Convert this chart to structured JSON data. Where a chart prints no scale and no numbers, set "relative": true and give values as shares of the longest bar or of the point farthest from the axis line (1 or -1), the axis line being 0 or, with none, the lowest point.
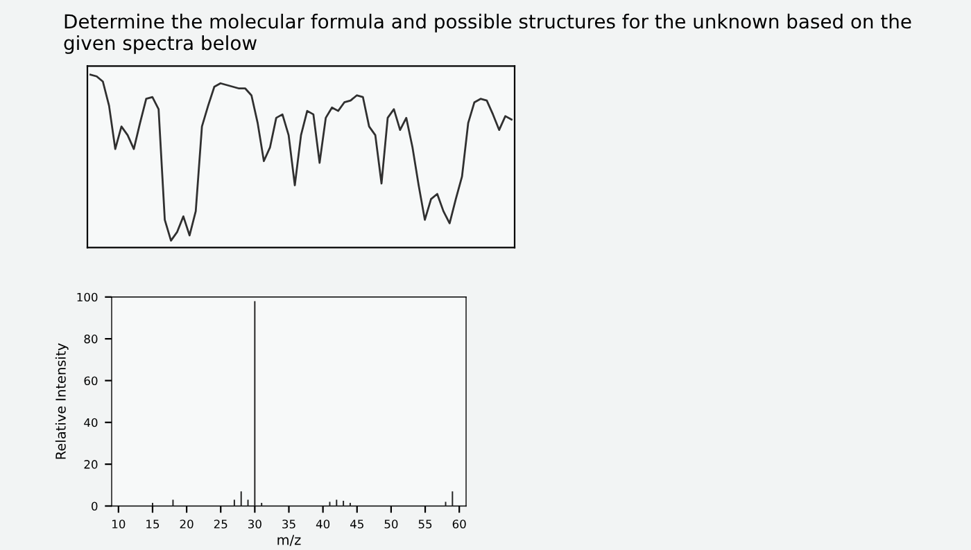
{
  "chart_data": [
    {
      "type": "line",
      "title": "Determine the molecular formula and possible structures for the unknown based on the given spectra below",
      "relative": true,
      "color": "#303030",
      "categories": [
        null,
        null,
        null,
        null,
        null,
        null,
        null,
        null,
        null,
        null,
        null,
        null,
        null,
        null,
        null,
        null,
        null,
        null,
        null,
        null,
        null,
        null,
        null,
        null,
        null,
        null,
        null,
        null,
        null,
        null,
        null,
        null,
        null,
        null,
        null,
        null,
        null,
        null,
        null,
        null,
        null,
        null,
        null,
        null,
        null,
        null,
        null,
        null,
        null,
        null,
        null,
        null,
        null,
        null,
        null,
        null,
        null,
        null,
        null,
        null,
        null,
        null,
        null,
        null,
        null,
        null,
        null,
        null,
        null
      ],
      "values": [
        1.0,
        0.99,
        0.96,
        0.82,
        0.57,
        0.7,
        0.65,
        0.57,
        0.72,
        0.86,
        0.87,
        0.8,
        0.16,
        0.04,
        0.09,
        0.18,
        0.07,
        0.21,
        0.7,
        0.82,
        0.93,
        0.95,
        0.94,
        0.93,
        0.92,
        0.92,
        0.88,
        0.72,
        0.5,
        0.58,
        0.75,
        0.77,
        0.65,
        0.36,
        0.65,
        0.79,
        0.77,
        0.49,
        0.75,
        0.81,
        0.79,
        0.84,
        0.85,
        0.88,
        0.87,
        0.7,
        0.65,
        0.37,
        0.75,
        0.8,
        0.68,
        0.75,
        0.58,
        0.36,
        0.16,
        0.28,
        0.31,
        0.21,
        0.14,
        0.28,
        0.41,
        0.72,
        0.84,
        0.86,
        0.85,
        0.77,
        0.68,
        0.76,
        0.74
      ]
    },
    {
      "type": "bar",
      "xlabel": "m/z",
      "ylabel": "Relative Intensity",
      "color": "#222222",
      "x": [
        15,
        18,
        27,
        28,
        29,
        30,
        31,
        41,
        42,
        43,
        44,
        58,
        59
      ],
      "values": [
        1.5,
        3,
        3,
        7,
        3,
        98,
        1.5,
        2,
        3,
        2.5,
        1.5,
        2,
        7
      ],
      "xlim": [
        9,
        61
      ],
      "xticks": [
        10,
        15,
        20,
        25,
        30,
        35,
        40,
        45,
        50,
        55,
        60
      ],
      "ylim": [
        0,
        100
      ],
      "yticks": [
        0,
        20,
        40,
        60,
        80,
        100
      ]
    }
  ]
}
